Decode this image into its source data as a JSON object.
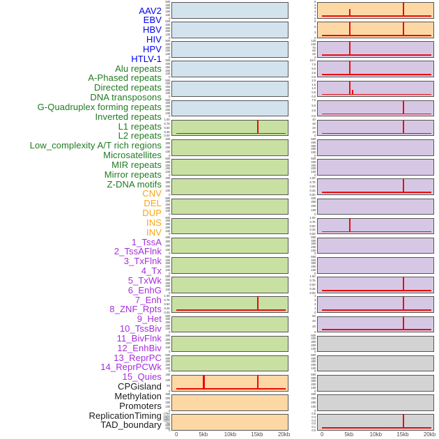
{
  "chart_data": {
    "type": "line",
    "title": "",
    "description": "Small-multiple density tracks of genomic features over a 0-20kb window, arranged in two panel columns with a shared list of 44 track labels",
    "x_axis": {
      "tick_labels": [
        "0",
        "5kb",
        "10kb",
        "15kb",
        "20kb"
      ],
      "tick_kb": [
        0,
        5,
        10,
        15,
        20
      ],
      "range_kb": [
        0,
        20
      ],
      "label": ""
    },
    "layout": {
      "columns": 2,
      "tracks_per_column": 22,
      "grid": false,
      "legend": "none"
    },
    "line_color": "#E80C0C",
    "group_styles": {
      "virus": {
        "label_color": "#0000EE",
        "panel_color": "#D3E3EE"
      },
      "repeat": {
        "label_color": "#1F7A1F",
        "panel_color": "#C9E0A3"
      },
      "sv": {
        "label_color": "#F7A514",
        "panel_color": "#FED8A4"
      },
      "chromatin": {
        "label_color": "#A62BDD",
        "panel_color": "#D6C8E5"
      },
      "other": {
        "label_color": "#1A1A1A",
        "panel_color": "#D3D3D3"
      }
    },
    "tracks": [
      {
        "name": "AAV2",
        "group": "virus",
        "y_ticks": [
          "500",
          "400",
          "300",
          "200",
          "100",
          "0"
        ],
        "baseline": false,
        "spikes": []
      },
      {
        "name": "EBV",
        "group": "virus",
        "y_ticks": [
          "500",
          "400",
          "300",
          "200",
          "100",
          "0"
        ],
        "baseline": false,
        "spikes": []
      },
      {
        "name": "HBV",
        "group": "virus",
        "y_ticks": [
          "500",
          "400",
          "300",
          "200",
          "100",
          "0"
        ],
        "baseline": false,
        "spikes": []
      },
      {
        "name": "HIV",
        "group": "virus",
        "y_ticks": [
          "500",
          "400",
          "300",
          "200",
          "100",
          "0"
        ],
        "baseline": false,
        "spikes": []
      },
      {
        "name": "HPV",
        "group": "virus",
        "y_ticks": [
          "500",
          "400",
          "300",
          "200",
          "100",
          "0"
        ],
        "baseline": false,
        "spikes": []
      },
      {
        "name": "HTLV-1",
        "group": "virus",
        "y_ticks": [
          "500",
          "400",
          "300",
          "200",
          "100",
          "0"
        ],
        "baseline": false,
        "spikes": []
      },
      {
        "name": "Alu repeats",
        "group": "repeat",
        "y_ticks": [
          "1.00",
          "0.75",
          "0.50",
          "0.25",
          "0.00"
        ],
        "baseline": true,
        "spikes": [
          {
            "kb": 15,
            "h": 1.0
          }
        ]
      },
      {
        "name": "A-Phased repeats",
        "group": "repeat",
        "y_ticks": [
          "400",
          "300",
          "200",
          "100",
          "0"
        ],
        "baseline": false,
        "spikes": []
      },
      {
        "name": "Directed repeats",
        "group": "repeat",
        "y_ticks": [
          "500",
          "400",
          "300",
          "200",
          "100",
          "0"
        ],
        "baseline": false,
        "spikes": []
      },
      {
        "name": "DNA transposons",
        "group": "repeat",
        "y_ticks": [
          "400",
          "300",
          "200",
          "100",
          "0"
        ],
        "baseline": false,
        "spikes": []
      },
      {
        "name": "G-Quadruplex forming repeats",
        "group": "repeat",
        "y_ticks": [
          "500",
          "400",
          "300",
          "200",
          "100",
          "0"
        ],
        "baseline": false,
        "spikes": []
      },
      {
        "name": "Inverted repeats",
        "group": "repeat",
        "y_ticks": [
          "500",
          "400",
          "300",
          "200",
          "100",
          "0"
        ],
        "baseline": false,
        "spikes": []
      },
      {
        "name": "L1 repeats",
        "group": "repeat",
        "y_ticks": [
          "400",
          "300",
          "200",
          "100",
          "0"
        ],
        "baseline": false,
        "spikes": []
      },
      {
        "name": "L2 repeats",
        "group": "repeat",
        "y_ticks": [
          "500",
          "400",
          "300",
          "200",
          "100",
          "0"
        ],
        "baseline": false,
        "spikes": []
      },
      {
        "name": "Low_complexity A/T rich regions",
        "group": "repeat",
        "y_ticks": [
          "500",
          "400",
          "300",
          "200",
          "100",
          "0"
        ],
        "baseline": false,
        "spikes": []
      },
      {
        "name": "Microsatellites",
        "group": "repeat",
        "y_ticks": [
          "1.00",
          "0.75",
          "0.50",
          "0.25",
          "0.00"
        ],
        "baseline": true,
        "spikes": [
          {
            "kb": 15,
            "h": 1.0
          }
        ]
      },
      {
        "name": "MIR repeats",
        "group": "repeat",
        "y_ticks": [
          "500",
          "400",
          "300",
          "200",
          "100",
          "0"
        ],
        "baseline": false,
        "spikes": []
      },
      {
        "name": "Mirror repeats",
        "group": "repeat",
        "y_ticks": [
          "400",
          "300",
          "200",
          "100",
          "0"
        ],
        "baseline": false,
        "spikes": []
      },
      {
        "name": "Z-DNA motifs",
        "group": "repeat",
        "y_ticks": [
          "500",
          "400",
          "300",
          "200",
          "100",
          "0"
        ],
        "baseline": false,
        "spikes": []
      },
      {
        "name": "CNV",
        "group": "sv",
        "y_ticks": [
          "150",
          "100",
          "50",
          "0"
        ],
        "baseline": true,
        "spikes": [
          {
            "kb": 5,
            "h": 1.0,
            "w": 2.8
          },
          {
            "kb": 15,
            "h": 1.0,
            "w": 2.8
          }
        ]
      },
      {
        "name": "DEL",
        "group": "sv",
        "y_ticks": [
          "400",
          "300",
          "200",
          "100",
          "0"
        ],
        "baseline": false,
        "spikes": []
      },
      {
        "name": "DUP",
        "group": "sv",
        "y_ticks": [
          "1750",
          "1500",
          "1250",
          "1000",
          "750",
          "500",
          "250",
          "0"
        ],
        "baseline": false,
        "spikes": []
      },
      {
        "name": "INS",
        "group": "sv",
        "y_ticks": [
          "5",
          "4",
          "3",
          "2",
          "1",
          "0"
        ],
        "baseline": true,
        "spikes": [
          {
            "kb": 5,
            "h": 0.5
          },
          {
            "kb": 15,
            "h": 1.0
          }
        ]
      },
      {
        "name": "INV",
        "group": "sv",
        "y_ticks": [
          "9",
          "6",
          "3",
          "0"
        ],
        "baseline": true,
        "spikes": [
          {
            "kb": 5,
            "h": 1.0
          },
          {
            "kb": 15,
            "h": 1.0
          }
        ]
      },
      {
        "name": "1_TssA",
        "group": "chromatin",
        "y_ticks": [
          "125",
          "100",
          "75",
          "50",
          "25",
          "0"
        ],
        "baseline": true,
        "spikes": [
          {
            "kb": 5,
            "h": 1.0
          }
        ]
      },
      {
        "name": "2_TssAFlnk",
        "group": "chromatin",
        "y_ticks": [
          "10.0",
          "7.5",
          "5.0",
          "2.5",
          "0.0"
        ],
        "baseline": true,
        "spikes": [
          {
            "kb": 5,
            "h": 1.0
          }
        ]
      },
      {
        "name": "3_TxFlnk",
        "group": "chromatin",
        "y_ticks": [
          "2.0",
          "1.5",
          "1.0",
          "0.5",
          "0.0"
        ],
        "baseline": true,
        "spikes": [
          {
            "kb": 5,
            "h": 1.0
          },
          {
            "kb": 5.6,
            "h": 0.33
          }
        ]
      },
      {
        "name": "4_Tx",
        "group": "chromatin",
        "y_ticks": [
          "7.5",
          "5.0",
          "2.5",
          "0.0"
        ],
        "baseline": true,
        "spikes": [
          {
            "kb": 15,
            "h": 1.0
          }
        ]
      },
      {
        "name": "5_TxWk",
        "group": "chromatin",
        "y_ticks": [
          "40",
          "30",
          "20",
          "10",
          "0"
        ],
        "baseline": true,
        "spikes": [
          {
            "kb": 15,
            "h": 1.0
          }
        ]
      },
      {
        "name": "6_EnhG",
        "group": "chromatin",
        "y_ticks": [
          "500",
          "400",
          "300",
          "200",
          "100",
          "0"
        ],
        "baseline": false,
        "spikes": []
      },
      {
        "name": "7_Enh",
        "group": "chromatin",
        "y_ticks": [
          "500",
          "400",
          "300",
          "200",
          "100",
          "0"
        ],
        "baseline": false,
        "spikes": []
      },
      {
        "name": "8_ZNF_Rpts",
        "group": "chromatin",
        "y_ticks": [
          "1.00",
          "0.75",
          "0.50",
          "0.25",
          "0.00"
        ],
        "baseline": true,
        "spikes": [
          {
            "kb": 15,
            "h": 1.0
          }
        ]
      },
      {
        "name": "9_Het",
        "group": "chromatin",
        "y_ticks": [
          "400",
          "300",
          "200",
          "100",
          "0"
        ],
        "baseline": false,
        "spikes": []
      },
      {
        "name": "10_TssBiv",
        "group": "chromatin",
        "y_ticks": [
          "1.00",
          "0.75",
          "0.50",
          "0.25",
          "0.00"
        ],
        "baseline": true,
        "spikes": [
          {
            "kb": 5,
            "h": 1.0
          }
        ]
      },
      {
        "name": "11_BivFlnk",
        "group": "chromatin",
        "y_ticks": [
          "500",
          "400",
          "300",
          "200",
          "100",
          "0"
        ],
        "baseline": false,
        "spikes": []
      },
      {
        "name": "12_EnhBiv",
        "group": "chromatin",
        "y_ticks": [
          "500",
          "400",
          "300",
          "200",
          "100",
          "0"
        ],
        "baseline": false,
        "spikes": []
      },
      {
        "name": "13_ReprPC",
        "group": "chromatin",
        "y_ticks": [
          "1.00",
          "0.75",
          "0.50",
          "0.25",
          "0.00"
        ],
        "baseline": true,
        "spikes": [
          {
            "kb": 15,
            "h": 1.0
          }
        ]
      },
      {
        "name": "14_ReprPCWk",
        "group": "chromatin",
        "y_ticks": [
          "4",
          "3",
          "2",
          "1",
          "0"
        ],
        "baseline": true,
        "spikes": [
          {
            "kb": 15,
            "h": 1.0
          }
        ]
      },
      {
        "name": "15_Quies",
        "group": "chromatin",
        "y_ticks": [
          "60",
          "40",
          "20",
          "0"
        ],
        "baseline": true,
        "spikes": [
          {
            "kb": 15,
            "h": 1.0
          }
        ]
      },
      {
        "name": "CPGisland",
        "group": "other",
        "y_ticks": [
          "500",
          "400",
          "300",
          "200",
          "100",
          "0"
        ],
        "baseline": false,
        "spikes": []
      },
      {
        "name": "Methylation",
        "group": "other",
        "y_ticks": [
          "500",
          "400",
          "300",
          "200",
          "100",
          "0"
        ],
        "baseline": false,
        "spikes": []
      },
      {
        "name": "Promoters",
        "group": "other",
        "y_ticks": [
          "500",
          "400",
          "300",
          "200",
          "100",
          "0"
        ],
        "baseline": false,
        "spikes": []
      },
      {
        "name": "ReplicationTiming",
        "group": "other",
        "y_ticks": [
          "400",
          "300",
          "200",
          "100",
          "0"
        ],
        "baseline": false,
        "spikes": []
      },
      {
        "name": "TAD_boundary",
        "group": "other",
        "y_ticks": [
          "0.5",
          "0.4",
          "0.3",
          "0.2",
          "0.1",
          "0.0"
        ],
        "baseline": true,
        "spikes": [
          {
            "kb": 15,
            "h": 1.0
          }
        ]
      }
    ]
  }
}
